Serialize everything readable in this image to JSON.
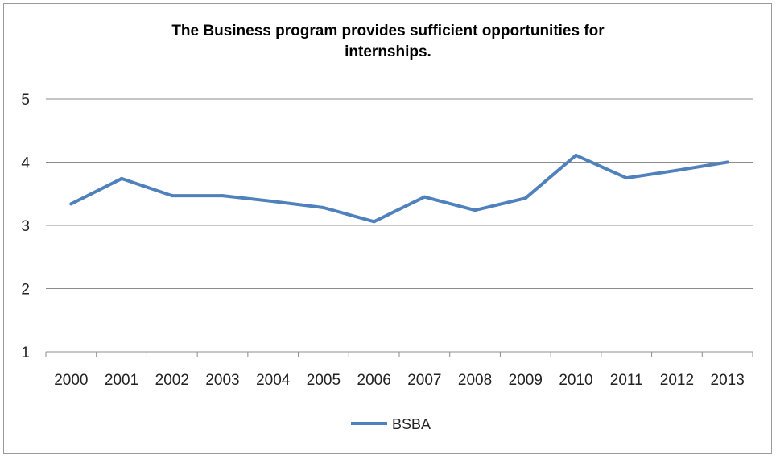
{
  "chart_data": {
    "type": "line",
    "title_lines": [
      "The Business program provides sufficient opportunities for",
      "internships."
    ],
    "x": [
      "2000",
      "2001",
      "2002",
      "2003",
      "2004",
      "2005",
      "2006",
      "2007",
      "2008",
      "2009",
      "2010",
      "2011",
      "2012",
      "2013"
    ],
    "series": [
      {
        "name": "BSBA",
        "color": "#4f81bd",
        "values": [
          3.34,
          3.74,
          3.47,
          3.47,
          3.38,
          3.28,
          3.06,
          3.45,
          3.24,
          3.43,
          4.11,
          3.75,
          3.87,
          4.0
        ]
      }
    ],
    "ylim": [
      1,
      5
    ],
    "yticks": [
      1,
      2,
      3,
      4,
      5
    ],
    "grid": true,
    "legend": "bottom"
  }
}
